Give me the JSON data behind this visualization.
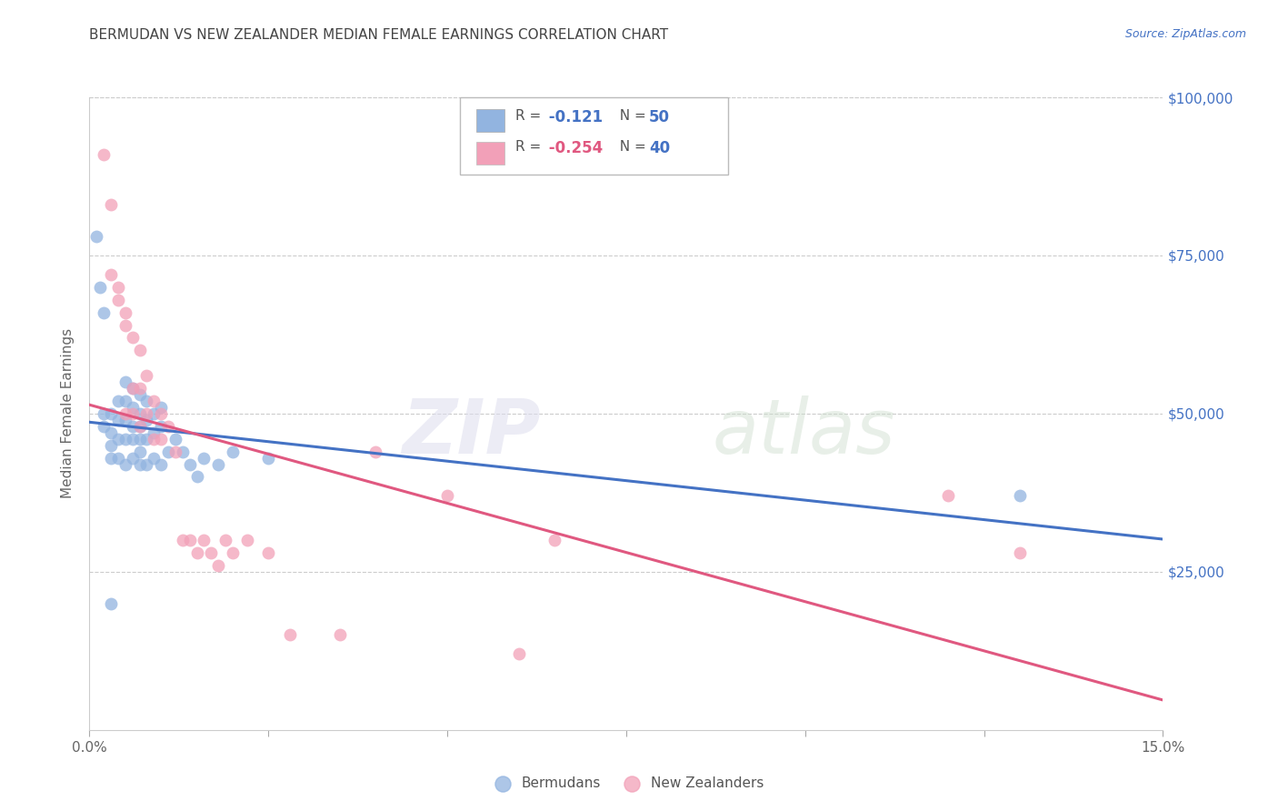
{
  "title": "BERMUDAN VS NEW ZEALANDER MEDIAN FEMALE EARNINGS CORRELATION CHART",
  "source": "Source: ZipAtlas.com",
  "ylabel": "Median Female Earnings",
  "watermark_zip": "ZIP",
  "watermark_atlas": "atlas",
  "xlim": [
    0.0,
    0.15
  ],
  "ylim": [
    0,
    100000
  ],
  "yticks": [
    0,
    25000,
    50000,
    75000,
    100000
  ],
  "ytick_labels": [
    "",
    "$25,000",
    "$50,000",
    "$75,000",
    "$100,000"
  ],
  "xticks": [
    0.0,
    0.025,
    0.05,
    0.075,
    0.1,
    0.125,
    0.15
  ],
  "xtick_labels": [
    "0.0%",
    "",
    "",
    "",
    "",
    "",
    "15.0%"
  ],
  "bermuda_R": -0.121,
  "bermuda_N": 50,
  "nz_R": -0.254,
  "nz_N": 40,
  "bermuda_color": "#92B4E0",
  "nz_color": "#F2A0B8",
  "bermuda_line_color": "#4472C4",
  "nz_line_color": "#E05880",
  "background_color": "#FFFFFF",
  "grid_color": "#CCCCCC",
  "title_color": "#444444",
  "right_ytick_color": "#4472C4",
  "legend_R_color_bermuda": "#4472C4",
  "legend_R_color_nz": "#E05880",
  "legend_N_color": "#4472C4",
  "bermuda_x": [
    0.001,
    0.0015,
    0.002,
    0.002,
    0.002,
    0.003,
    0.003,
    0.003,
    0.003,
    0.004,
    0.004,
    0.004,
    0.004,
    0.005,
    0.005,
    0.005,
    0.005,
    0.005,
    0.006,
    0.006,
    0.006,
    0.006,
    0.006,
    0.007,
    0.007,
    0.007,
    0.007,
    0.007,
    0.007,
    0.008,
    0.008,
    0.008,
    0.008,
    0.009,
    0.009,
    0.009,
    0.01,
    0.01,
    0.01,
    0.011,
    0.012,
    0.013,
    0.014,
    0.015,
    0.016,
    0.018,
    0.02,
    0.025,
    0.13,
    0.003
  ],
  "bermuda_y": [
    78000,
    70000,
    66000,
    50000,
    48000,
    50000,
    47000,
    45000,
    43000,
    52000,
    49000,
    46000,
    43000,
    55000,
    52000,
    49000,
    46000,
    42000,
    54000,
    51000,
    48000,
    46000,
    43000,
    53000,
    50000,
    48000,
    46000,
    44000,
    42000,
    52000,
    49000,
    46000,
    42000,
    50000,
    47000,
    43000,
    51000,
    48000,
    42000,
    44000,
    46000,
    44000,
    42000,
    40000,
    43000,
    42000,
    44000,
    43000,
    37000,
    20000
  ],
  "nz_x": [
    0.002,
    0.003,
    0.003,
    0.004,
    0.004,
    0.005,
    0.005,
    0.005,
    0.006,
    0.006,
    0.006,
    0.007,
    0.007,
    0.007,
    0.008,
    0.008,
    0.009,
    0.009,
    0.01,
    0.01,
    0.011,
    0.012,
    0.013,
    0.014,
    0.015,
    0.016,
    0.017,
    0.018,
    0.019,
    0.02,
    0.022,
    0.025,
    0.028,
    0.035,
    0.04,
    0.05,
    0.06,
    0.065,
    0.12,
    0.13
  ],
  "nz_y": [
    91000,
    83000,
    72000,
    70000,
    68000,
    66000,
    64000,
    50000,
    62000,
    54000,
    50000,
    60000,
    54000,
    48000,
    56000,
    50000,
    52000,
    46000,
    50000,
    46000,
    48000,
    44000,
    30000,
    30000,
    28000,
    30000,
    28000,
    26000,
    30000,
    28000,
    30000,
    28000,
    15000,
    15000,
    44000,
    37000,
    12000,
    30000,
    37000,
    28000
  ]
}
